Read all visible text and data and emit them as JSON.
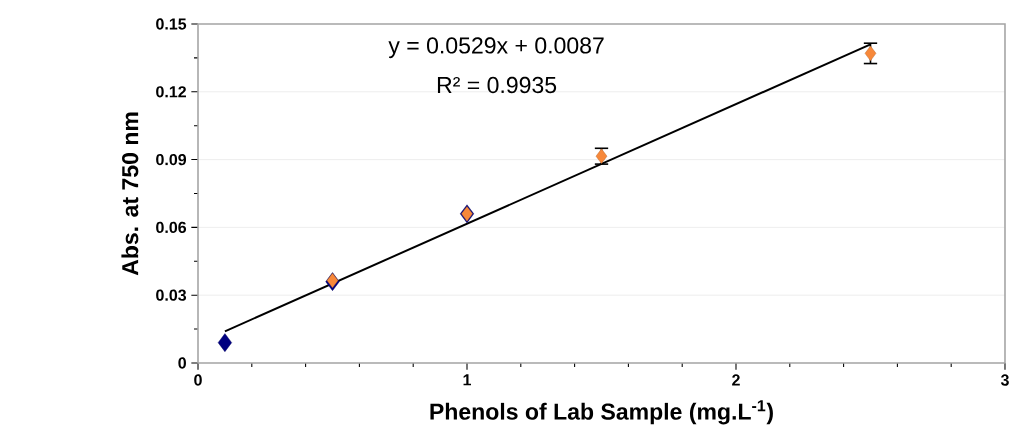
{
  "chart_data": {
    "type": "scatter",
    "xlabel": "Phenols of Lab Sample (mg.L$^{-1}$)",
    "ylabel": "Abs. at 750 nm",
    "annotations": [
      "y = 0.0529x + 0.0087",
      "R² = 0.9935"
    ],
    "xlim": [
      0,
      3
    ],
    "xticks": [
      0,
      1,
      2,
      3
    ],
    "ylim": [
      0,
      0.15
    ],
    "yticks": [
      0,
      0.03,
      0.06,
      0.09,
      0.12,
      0.15
    ],
    "grid": "y",
    "marker": "diamond",
    "series": [
      {
        "color": "#000080",
        "x": [
          0.1,
          0.5,
          1
        ],
        "values": [
          0.009,
          0.036,
          0.066
        ]
      },
      {
        "color": "#f7883a",
        "x": [
          0.5,
          1,
          1.5,
          2.5
        ],
        "values": [
          0.0365,
          0.066,
          0.0915,
          0.137
        ],
        "errors": [
          null,
          null,
          0.0035,
          0.0045
        ]
      },
      {
        "type": "line",
        "marker": "none",
        "color": "#000000",
        "x": [
          0.1,
          2.5
        ],
        "values": [
          0.014,
          0.141
        ]
      }
    ]
  }
}
